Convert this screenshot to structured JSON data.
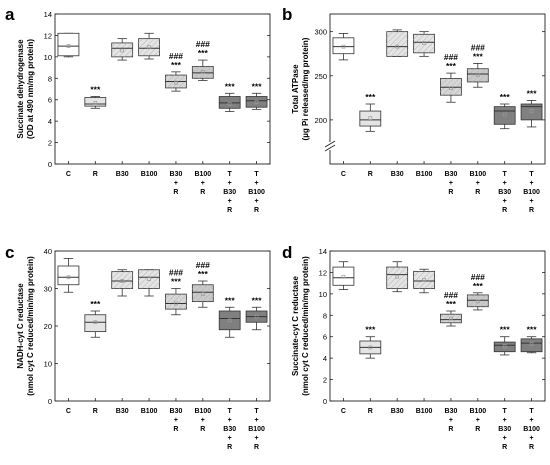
{
  "figure": {
    "categories": [
      "C",
      "R",
      "B30",
      "B100",
      "B30\n+\nR",
      "B100\n+\nR",
      "T\n+\nB30\n+\nR",
      "T\n+\nB100\n+\nR"
    ],
    "fills": [
      "#ffffff",
      "#e4e4e4",
      "#e4e4e4",
      "#e4e4e4",
      "#d6d6d6",
      "#c9c9c9",
      "#808080",
      "#808080"
    ],
    "edge_color": "#333333",
    "mean_marker_color": "#9a9a9a"
  },
  "chart_data": [
    {
      "panel_label": "a",
      "type": "box",
      "ylabel": "Succinate dehydrogenase\n(OD at 490 nm/mg protein)",
      "ylim": [
        0,
        14
      ],
      "yticks": [
        "0",
        "2",
        "4",
        "6",
        "8",
        "10",
        "12",
        "14"
      ],
      "axis_break": false,
      "boxes": [
        {
          "category": "C",
          "whisker_low": 10.0,
          "q1": 10.1,
          "median": 11.0,
          "q3": 12.2,
          "whisker_high": 12.2,
          "mean": 11.0
        },
        {
          "category": "R",
          "whisker_low": 5.2,
          "q1": 5.4,
          "median": 5.6,
          "q3": 6.2,
          "whisker_high": 6.3,
          "mean": 5.7
        },
        {
          "category": "B30",
          "whisker_low": 9.7,
          "q1": 10.0,
          "median": 10.8,
          "q3": 11.3,
          "whisker_high": 11.7,
          "mean": 10.6
        },
        {
          "category": "B100",
          "whisker_low": 9.8,
          "q1": 10.1,
          "median": 10.8,
          "q3": 11.7,
          "whisker_high": 12.2,
          "mean": 10.9
        },
        {
          "category": "B30 + R",
          "whisker_low": 6.8,
          "q1": 7.1,
          "median": 7.7,
          "q3": 8.3,
          "whisker_high": 8.6,
          "mean": 7.6
        },
        {
          "category": "B100 + R",
          "whisker_low": 7.8,
          "q1": 8.0,
          "median": 8.5,
          "q3": 9.1,
          "whisker_high": 9.7,
          "mean": 8.6
        },
        {
          "category": "T + B30 + R",
          "whisker_low": 4.9,
          "q1": 5.2,
          "median": 5.7,
          "q3": 6.3,
          "whisker_high": 6.6,
          "mean": 5.6
        },
        {
          "category": "T + B100 + R",
          "whisker_low": 5.1,
          "q1": 5.3,
          "median": 5.9,
          "q3": 6.3,
          "whisker_high": 6.6,
          "mean": 5.8
        }
      ],
      "annotations": [
        "",
        "***",
        "",
        "",
        "###\n***",
        "###\n***",
        "***",
        "***"
      ]
    },
    {
      "panel_label": "b",
      "type": "box",
      "ylabel": "Total ATPase\n(µg Pi released/mg protein)",
      "ylim": [
        150,
        320
      ],
      "yticks": [
        "200",
        "250",
        "300"
      ],
      "axis_break": true,
      "boxes": [
        {
          "category": "C",
          "whisker_low": 268,
          "q1": 275,
          "median": 283,
          "q3": 293,
          "whisker_high": 298,
          "mean": 283
        },
        {
          "category": "R",
          "whisker_low": 187,
          "q1": 193,
          "median": 200,
          "q3": 210,
          "whisker_high": 218,
          "mean": 202
        },
        {
          "category": "B30",
          "whisker_low": 272,
          "q1": 272,
          "median": 283,
          "q3": 300,
          "whisker_high": 302,
          "mean": 283
        },
        {
          "category": "B100",
          "whisker_low": 272,
          "q1": 276,
          "median": 288,
          "q3": 297,
          "whisker_high": 300,
          "mean": 287
        },
        {
          "category": "B30 + R",
          "whisker_low": 220,
          "q1": 228,
          "median": 237,
          "q3": 247,
          "whisker_high": 253,
          "mean": 236
        },
        {
          "category": "B100 + R",
          "whisker_low": 237,
          "q1": 243,
          "median": 252,
          "q3": 258,
          "whisker_high": 264,
          "mean": 251
        },
        {
          "category": "T + B30 + R",
          "whisker_low": 190,
          "q1": 195,
          "median": 210,
          "q3": 215,
          "whisker_high": 218,
          "mean": 206
        },
        {
          "category": "T + B100 + R",
          "whisker_low": 192,
          "q1": 200,
          "median": 215,
          "q3": 218,
          "whisker_high": 222,
          "mean": 210
        }
      ],
      "annotations": [
        "",
        "***",
        "",
        "",
        "###\n***",
        "###\n***",
        "***",
        "***"
      ]
    },
    {
      "panel_label": "c",
      "type": "box",
      "ylabel": "NADH-cyt C reductase\n(nmol cyt C reduced/min/mg protein)",
      "ylim": [
        0,
        40
      ],
      "yticks": [
        "0",
        "10",
        "20",
        "30",
        "40"
      ],
      "axis_break": false,
      "boxes": [
        {
          "category": "C",
          "whisker_low": 29,
          "q1": 31,
          "median": 33,
          "q3": 36,
          "whisker_high": 38,
          "mean": 33
        },
        {
          "category": "R",
          "whisker_low": 17,
          "q1": 18.5,
          "median": 21,
          "q3": 23,
          "whisker_high": 24,
          "mean": 21
        },
        {
          "category": "B30",
          "whisker_low": 28,
          "q1": 30,
          "median": 32,
          "q3": 34.5,
          "whisker_high": 35,
          "mean": 32
        },
        {
          "category": "B100",
          "whisker_low": 28,
          "q1": 30,
          "median": 33,
          "q3": 35,
          "whisker_high": 35,
          "mean": 32.5
        },
        {
          "category": "B30 + R",
          "whisker_low": 23,
          "q1": 24.5,
          "median": 26,
          "q3": 28.5,
          "whisker_high": 30,
          "mean": 26
        },
        {
          "category": "B100 + R",
          "whisker_low": 25,
          "q1": 26.5,
          "median": 29,
          "q3": 31,
          "whisker_high": 32,
          "mean": 28.5
        },
        {
          "category": "T + B30 + R",
          "whisker_low": 17,
          "q1": 19,
          "median": 22,
          "q3": 24,
          "whisker_high": 25,
          "mean": 21.5
        },
        {
          "category": "T + B100 + R",
          "whisker_low": 19,
          "q1": 21,
          "median": 22.5,
          "q3": 24,
          "whisker_high": 25,
          "mean": 22.5
        }
      ],
      "annotations": [
        "",
        "***",
        "",
        "",
        "###\n***",
        "###\n***",
        "***",
        "***"
      ]
    },
    {
      "panel_label": "d",
      "type": "box",
      "ylabel": "Succinate-cyt C reductase\n(nmol cyt C reduced/min/mg protein)",
      "ylim": [
        0,
        14
      ],
      "yticks": [
        "0",
        "2",
        "4",
        "6",
        "8",
        "10",
        "12",
        "14"
      ],
      "axis_break": false,
      "boxes": [
        {
          "category": "C",
          "whisker_low": 10.4,
          "q1": 10.8,
          "median": 11.5,
          "q3": 12.5,
          "whisker_high": 13.0,
          "mean": 11.6
        },
        {
          "category": "R",
          "whisker_low": 4.0,
          "q1": 4.4,
          "median": 5.0,
          "q3": 5.6,
          "whisker_high": 6.0,
          "mean": 5.0
        },
        {
          "category": "B30",
          "whisker_low": 10.2,
          "q1": 10.5,
          "median": 11.8,
          "q3": 12.5,
          "whisker_high": 13.0,
          "mean": 11.6
        },
        {
          "category": "B100",
          "whisker_low": 10.1,
          "q1": 10.5,
          "median": 11.2,
          "q3": 12.1,
          "whisker_high": 12.3,
          "mean": 11.3
        },
        {
          "category": "B30 + R",
          "whisker_low": 7.0,
          "q1": 7.3,
          "median": 7.6,
          "q3": 8.1,
          "whisker_high": 8.4,
          "mean": 7.7
        },
        {
          "category": "B100 + R",
          "whisker_low": 8.5,
          "q1": 8.8,
          "median": 9.4,
          "q3": 9.9,
          "whisker_high": 10.1,
          "mean": 9.3
        },
        {
          "category": "T + B30 + R",
          "whisker_low": 4.3,
          "q1": 4.6,
          "median": 5.2,
          "q3": 5.5,
          "whisker_high": 6.0,
          "mean": 5.1
        },
        {
          "category": "T + B100 + R",
          "whisker_low": 4.5,
          "q1": 4.6,
          "median": 5.4,
          "q3": 5.8,
          "whisker_high": 6.0,
          "mean": 5.3
        }
      ],
      "annotations": [
        "",
        "***",
        "",
        "",
        "###\n***",
        "###\n***",
        "***",
        "***"
      ]
    }
  ]
}
